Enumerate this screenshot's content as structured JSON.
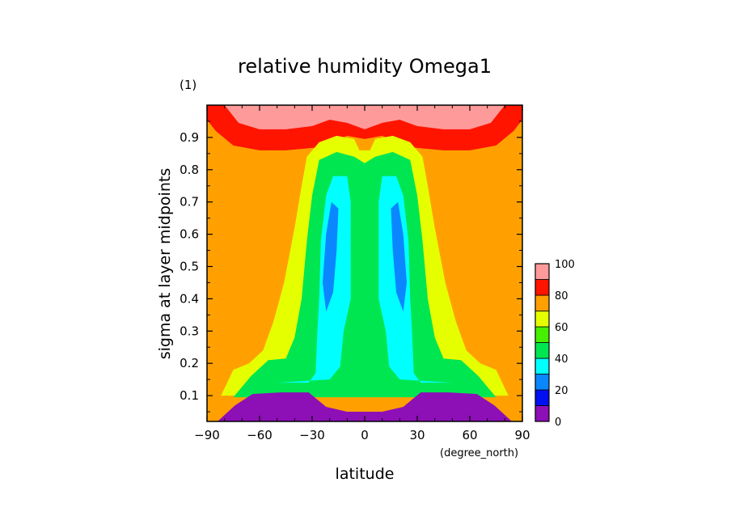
{
  "chart_data": {
    "type": "heatmap",
    "title": "relative humidity Omega1",
    "xlabel": "latitude",
    "x_units": "(degree_north)",
    "ylabel": "sigma at layer midpoints",
    "y_units": "(1)",
    "xlim": [
      -90,
      90
    ],
    "ylim": [
      1.0,
      0.02
    ],
    "x_ticks": [
      -90,
      -60,
      -30,
      0,
      30,
      60,
      90
    ],
    "y_ticks": [
      0.1,
      0.2,
      0.3,
      0.4,
      0.5,
      0.6,
      0.7,
      0.8,
      0.9
    ],
    "colorbar": {
      "levels": [
        0,
        10,
        20,
        30,
        40,
        50,
        60,
        70,
        80,
        90,
        100
      ],
      "tick_labels": [
        "0",
        "20",
        "40",
        "60",
        "80",
        "100"
      ],
      "colors": [
        "#8d0fb6",
        "#0010f0",
        "#0a87ff",
        "#00ffff",
        "#00e650",
        "#46f000",
        "#e6ff00",
        "#ffa000",
        "#ff1400",
        "#ff9a9a"
      ]
    },
    "contour_regions": [
      {
        "level": [
          80,
          90
        ],
        "points": [
          [
            -90,
            0.955
          ],
          [
            -85,
            0.92
          ],
          [
            -75,
            0.875
          ],
          [
            -60,
            0.86
          ],
          [
            -45,
            0.86
          ],
          [
            -25,
            0.87
          ],
          [
            -10,
            0.905
          ],
          [
            0,
            0.895
          ],
          [
            10,
            0.905
          ],
          [
            25,
            0.87
          ],
          [
            45,
            0.86
          ],
          [
            60,
            0.86
          ],
          [
            75,
            0.875
          ],
          [
            85,
            0.92
          ],
          [
            90,
            0.955
          ],
          [
            90,
            1.0
          ],
          [
            -90,
            1.0
          ]
        ]
      },
      {
        "level": [
          90,
          100
        ],
        "points": [
          [
            -80,
            1.0
          ],
          [
            -72,
            0.945
          ],
          [
            -60,
            0.925
          ],
          [
            -45,
            0.925
          ],
          [
            -30,
            0.935
          ],
          [
            -20,
            0.955
          ],
          [
            -10,
            0.945
          ],
          [
            0,
            0.925
          ],
          [
            10,
            0.945
          ],
          [
            20,
            0.955
          ],
          [
            30,
            0.935
          ],
          [
            45,
            0.925
          ],
          [
            60,
            0.925
          ],
          [
            72,
            0.945
          ],
          [
            80,
            1.0
          ]
        ]
      },
      {
        "level": [
          60,
          70
        ],
        "points": [
          [
            -82,
            0.1
          ],
          [
            -75,
            0.18
          ],
          [
            -66,
            0.2
          ],
          [
            -58,
            0.24
          ],
          [
            -52,
            0.33
          ],
          [
            -46,
            0.45
          ],
          [
            -40,
            0.62
          ],
          [
            -36,
            0.75
          ],
          [
            -33,
            0.84
          ],
          [
            -26,
            0.885
          ],
          [
            -16,
            0.905
          ],
          [
            -6,
            0.895
          ],
          [
            -3,
            0.86
          ],
          [
            3,
            0.86
          ],
          [
            6,
            0.895
          ],
          [
            16,
            0.905
          ],
          [
            26,
            0.885
          ],
          [
            33,
            0.84
          ],
          [
            36,
            0.75
          ],
          [
            40,
            0.62
          ],
          [
            46,
            0.45
          ],
          [
            52,
            0.33
          ],
          [
            58,
            0.24
          ],
          [
            66,
            0.2
          ],
          [
            75,
            0.18
          ],
          [
            82,
            0.1
          ]
        ]
      },
      {
        "level": [
          40,
          50
        ],
        "points": [
          [
            -75,
            0.095
          ],
          [
            -65,
            0.16
          ],
          [
            -55,
            0.21
          ],
          [
            -45,
            0.215
          ],
          [
            -40,
            0.28
          ],
          [
            -36,
            0.4
          ],
          [
            -33,
            0.58
          ],
          [
            -30,
            0.72
          ],
          [
            -26,
            0.83
          ],
          [
            -16,
            0.855
          ],
          [
            -6,
            0.84
          ],
          [
            0,
            0.82
          ],
          [
            6,
            0.84
          ],
          [
            16,
            0.855
          ],
          [
            26,
            0.83
          ],
          [
            30,
            0.72
          ],
          [
            33,
            0.58
          ],
          [
            36,
            0.4
          ],
          [
            40,
            0.28
          ],
          [
            45,
            0.215
          ],
          [
            55,
            0.21
          ],
          [
            65,
            0.16
          ],
          [
            75,
            0.095
          ]
        ]
      },
      {
        "level": [
          30,
          40
        ],
        "points": [
          [
            -50,
            0.14
          ],
          [
            -32,
            0.14
          ],
          [
            -28,
            0.17
          ],
          [
            -27,
            0.3
          ],
          [
            -26,
            0.4
          ],
          [
            -25,
            0.58
          ],
          [
            -22,
            0.72
          ],
          [
            -18,
            0.78
          ],
          [
            -10,
            0.78
          ],
          [
            -8,
            0.7
          ],
          [
            -8,
            0.4
          ],
          [
            -12,
            0.3
          ],
          [
            -14,
            0.19
          ],
          [
            -20,
            0.15
          ]
        ]
      },
      {
        "level": [
          30,
          40
        ],
        "points": [
          [
            50,
            0.14
          ],
          [
            32,
            0.14
          ],
          [
            28,
            0.17
          ],
          [
            27,
            0.3
          ],
          [
            26,
            0.4
          ],
          [
            25,
            0.58
          ],
          [
            22,
            0.72
          ],
          [
            18,
            0.78
          ],
          [
            10,
            0.78
          ],
          [
            8,
            0.7
          ],
          [
            8,
            0.4
          ],
          [
            12,
            0.3
          ],
          [
            14,
            0.19
          ],
          [
            20,
            0.15
          ]
        ]
      },
      {
        "level": [
          20,
          30
        ],
        "points": [
          [
            -22,
            0.36
          ],
          [
            -18,
            0.42
          ],
          [
            -16,
            0.55
          ],
          [
            -15,
            0.68
          ],
          [
            -19,
            0.7
          ],
          [
            -22,
            0.6
          ],
          [
            -24,
            0.45
          ]
        ]
      },
      {
        "level": [
          20,
          30
        ],
        "points": [
          [
            22,
            0.36
          ],
          [
            18,
            0.42
          ],
          [
            16,
            0.55
          ],
          [
            15,
            0.68
          ],
          [
            19,
            0.7
          ],
          [
            22,
            0.6
          ],
          [
            24,
            0.45
          ]
        ]
      },
      {
        "level": [
          0,
          10
        ],
        "points": [
          [
            -84,
            0.02
          ],
          [
            -74,
            0.07
          ],
          [
            -64,
            0.105
          ],
          [
            -48,
            0.11
          ],
          [
            -32,
            0.11
          ],
          [
            -22,
            0.065
          ],
          [
            -10,
            0.05
          ],
          [
            0,
            0.05
          ],
          [
            10,
            0.05
          ],
          [
            22,
            0.065
          ],
          [
            32,
            0.11
          ],
          [
            48,
            0.11
          ],
          [
            64,
            0.105
          ],
          [
            74,
            0.07
          ],
          [
            84,
            0.02
          ]
        ]
      }
    ]
  }
}
